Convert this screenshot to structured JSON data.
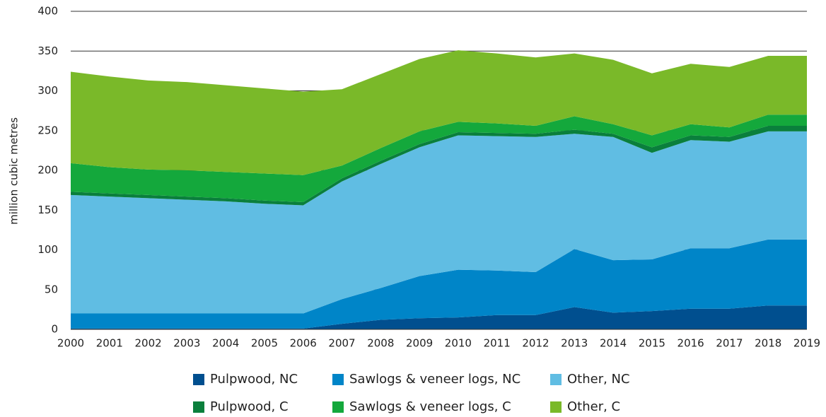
{
  "chart_data": {
    "type": "stacked_area",
    "y_label": "million  cubic metres",
    "categories": [
      "2000",
      "2001",
      "2002",
      "2003",
      "2004",
      "2005",
      "2006",
      "2007",
      "2008",
      "2009",
      "2010",
      "2011",
      "2012",
      "2013",
      "2014",
      "2015",
      "2016",
      "2017",
      "2018",
      "2019"
    ],
    "series": [
      {
        "name": "Pulpwood, NC",
        "color": "#004f8f",
        "values": [
          1,
          1,
          1,
          1,
          1,
          1,
          1,
          7,
          12,
          14,
          15,
          18,
          18,
          28,
          21,
          23,
          26,
          26,
          30,
          30
        ]
      },
      {
        "name": "Sawlogs & veneer logs, NC",
        "color": "#0085c8",
        "values": [
          19,
          19,
          19,
          19,
          19,
          19,
          19,
          31,
          40,
          53,
          60,
          56,
          54,
          73,
          66,
          65,
          76,
          76,
          83,
          83
        ]
      },
      {
        "name": "Other, NC",
        "color": "#60bde3",
        "values": [
          149,
          147,
          145,
          143,
          141,
          138,
          136,
          148,
          156,
          162,
          169,
          169,
          170,
          145,
          155,
          134,
          136,
          134,
          136,
          136
        ]
      },
      {
        "name": "Pulpwood, C",
        "color": "#0a7f3c",
        "values": [
          4,
          4,
          4,
          4,
          4,
          4,
          4,
          4,
          4,
          4,
          4,
          4,
          4,
          5,
          4,
          7,
          6,
          6,
          7,
          7
        ]
      },
      {
        "name": "Sawlogs & veneer logs, C",
        "color": "#14a83c",
        "values": [
          36,
          33,
          32,
          33,
          33,
          34,
          34,
          16,
          16,
          16,
          13,
          12,
          10,
          17,
          12,
          15,
          14,
          12,
          14,
          14
        ]
      },
      {
        "name": "Other, C",
        "color": "#7ab929",
        "values": [
          115,
          114,
          112,
          111,
          109,
          107,
          105,
          96,
          93,
          91,
          90,
          88,
          86,
          79,
          81,
          78,
          76,
          76,
          74,
          74
        ]
      }
    ],
    "ylim": [
      0,
      400
    ],
    "yticks": [
      0,
      50,
      100,
      150,
      200,
      250,
      300,
      350,
      400
    ],
    "grid": true
  }
}
